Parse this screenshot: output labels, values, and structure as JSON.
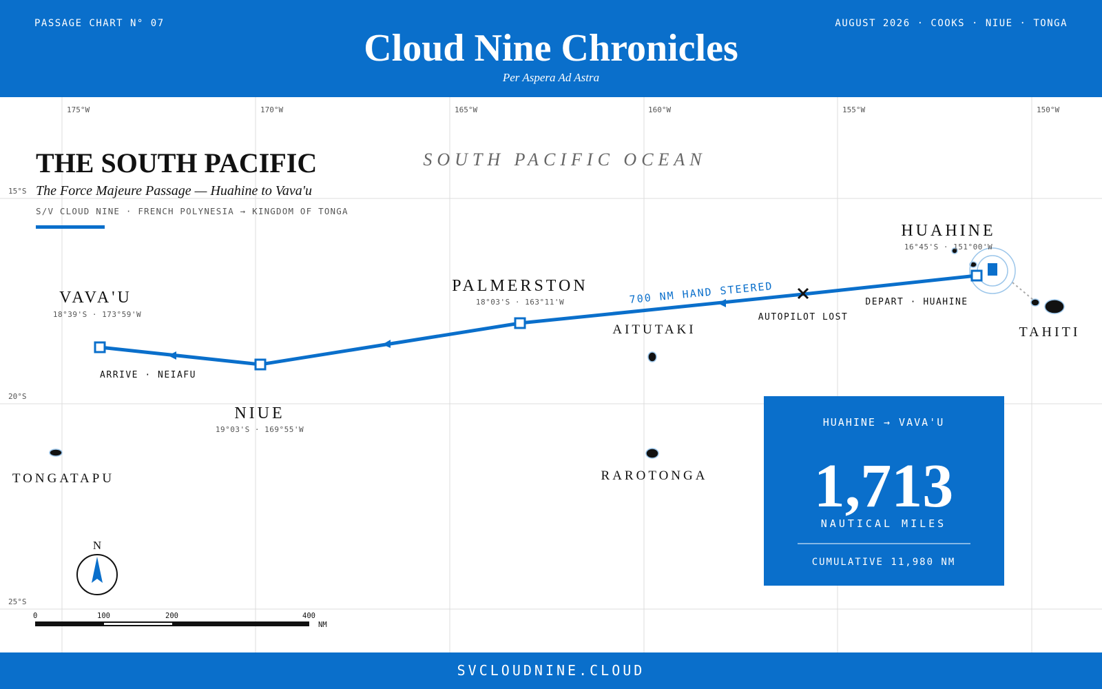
{
  "header": {
    "kicker_left": "PASSAGE CHART N° 07",
    "title": "Cloud Nine Chronicles",
    "subtitle": "Per Aspera Ad Astra",
    "kicker_right": "AUGUST 2026 · COOKS · NIUE · TONGA"
  },
  "grid": {
    "longitudes": [
      "175°W",
      "170°W",
      "165°W",
      "160°W",
      "155°W",
      "150°W"
    ],
    "latitudes": [
      "15°S",
      "20°S",
      "25°S"
    ]
  },
  "ocean_label": "SOUTH PACIFIC OCEAN",
  "intro": {
    "title": "THE SOUTH PACIFIC",
    "subtitle": "The Force Majeure Passage — Huahine to Vava'u",
    "meta": "S/V CLOUD NINE · FRENCH POLYNESIA → KINGDOM OF TONGA"
  },
  "places": [
    {
      "name": "HUAHINE",
      "coords": "16°45'S · 151°00'W"
    },
    {
      "name": "PALMERSTON",
      "coords": "18°03'S · 163°11'W"
    },
    {
      "name": "NIUE",
      "coords": "19°03'S · 169°55'W"
    },
    {
      "name": "VAVA'U",
      "coords": "18°39'S · 173°59'W"
    },
    {
      "name": "AITUTAKI"
    },
    {
      "name": "TAHITI"
    },
    {
      "name": "RAROTONGA"
    },
    {
      "name": "TONGATAPU"
    }
  ],
  "route_labels": {
    "hand_steered": "700 NM HAND STEERED",
    "autopilot": "AUTOPILOT LOST",
    "depart": "DEPART · HUAHINE",
    "arrive": "ARRIVE · NEIAFU"
  },
  "stat": {
    "route": "HUAHINE → VAVA'U",
    "value": "1,713",
    "unit": "NAUTICAL MILES",
    "cumulative": "CUMULATIVE 11,980 NM"
  },
  "compass": "N",
  "scale": {
    "ticks": [
      "0",
      "100",
      "200",
      "400"
    ],
    "unit": "NM"
  },
  "footer": "SVCLOUDNINE.CLOUD"
}
